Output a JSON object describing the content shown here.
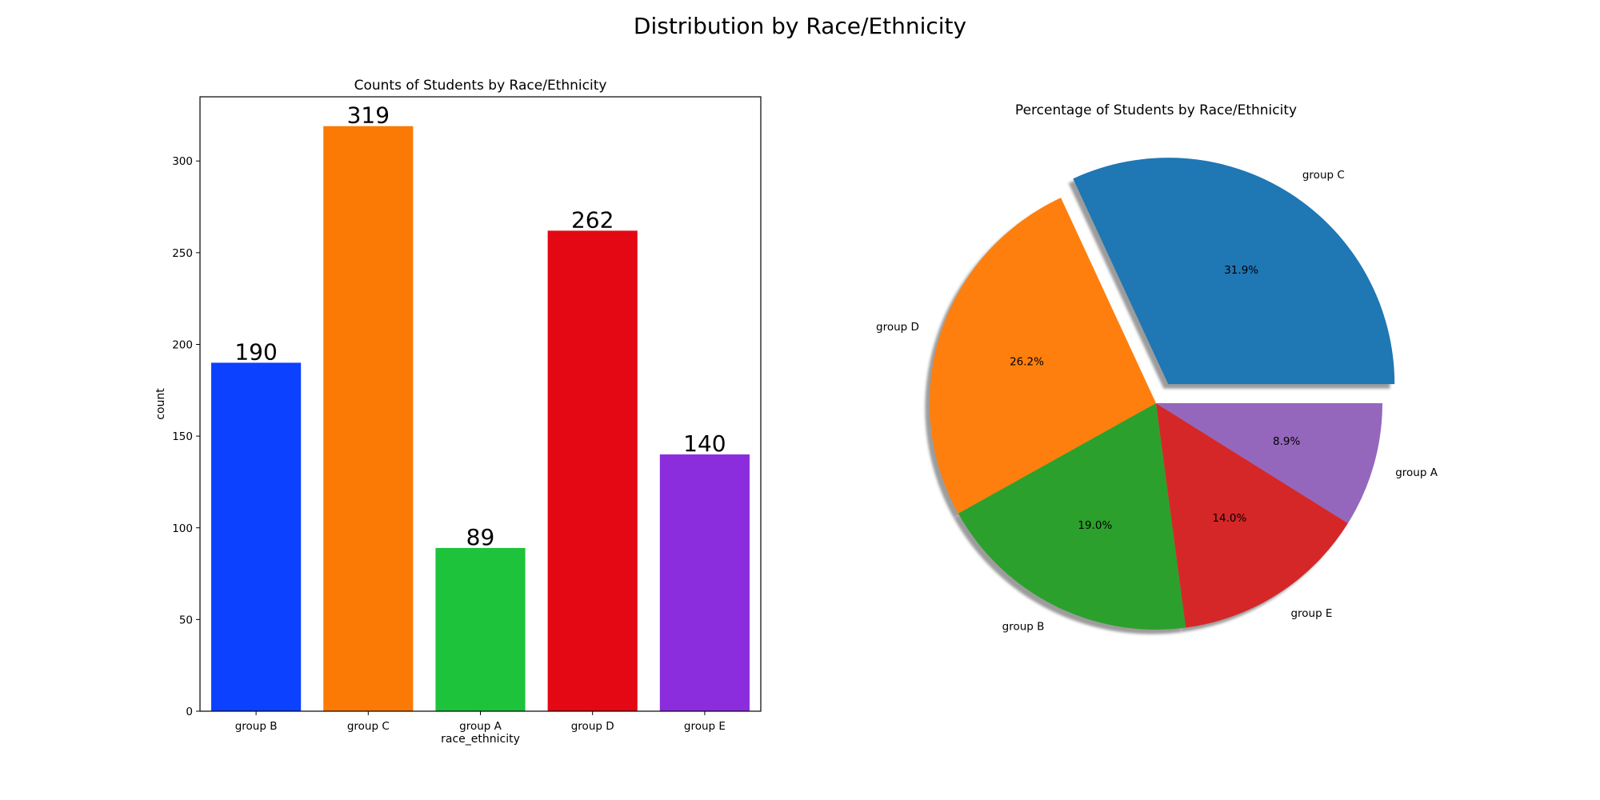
{
  "figure": {
    "title": "Distribution by Race/Ethnicity"
  },
  "chart_data": [
    {
      "type": "bar",
      "title": "Counts of Students by Race/Ethnicity",
      "xlabel": "race_ethnicity",
      "ylabel": "count",
      "categories": [
        "group B",
        "group C",
        "group A",
        "group D",
        "group E"
      ],
      "values": [
        190,
        319,
        89,
        262,
        140
      ],
      "data_labels": [
        "190",
        "319",
        "89",
        "262",
        "140"
      ],
      "colors": [
        "#0b41ff",
        "#fb7a05",
        "#1ec33c",
        "#e30813",
        "#8b2ddd"
      ],
      "ylim": [
        0,
        335
      ],
      "yticks": [
        0,
        50,
        100,
        150,
        200,
        250,
        300
      ],
      "grid": false,
      "legend": "none"
    },
    {
      "type": "pie",
      "title": "Percentage of Students by Race/Ethnicity",
      "labels": [
        "group C",
        "group D",
        "group B",
        "group E",
        "group A"
      ],
      "values": [
        31.9,
        26.2,
        19.0,
        14.0,
        8.9
      ],
      "pct_labels": [
        "31.9%",
        "26.2%",
        "19.0%",
        "14.0%",
        "8.9%"
      ],
      "colors": [
        "#1f77b4",
        "#ff7f0e",
        "#2ca02c",
        "#d62728",
        "#9467bd"
      ],
      "explode": [
        0.1,
        0,
        0,
        0,
        0
      ],
      "shadow": true,
      "legend": "none"
    }
  ]
}
